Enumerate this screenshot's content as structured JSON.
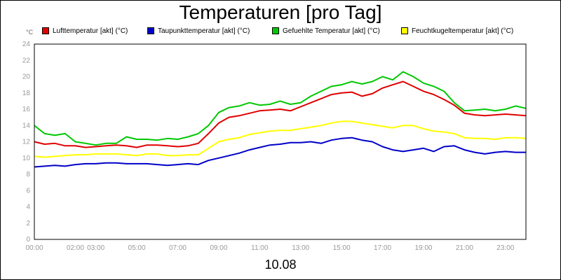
{
  "chart_data": {
    "type": "line",
    "title": "Temperaturen [pro Tag]",
    "xlabel": "10.08",
    "unit_label": "°C",
    "grid": true,
    "legend_position": "top",
    "ylim": [
      0,
      24
    ],
    "y_ticks": [
      0,
      2,
      4,
      6,
      8,
      10,
      12,
      14,
      16,
      18,
      20,
      22,
      24
    ],
    "xlim": [
      0,
      24
    ],
    "x_ticks": [
      {
        "x": 0,
        "label": "00:00"
      },
      {
        "x": 2,
        "label": "02:00"
      },
      {
        "x": 3,
        "label": "03:00"
      },
      {
        "x": 5,
        "label": "05:00"
      },
      {
        "x": 7,
        "label": "07:00"
      },
      {
        "x": 9,
        "label": "09:00"
      },
      {
        "x": 11,
        "label": "11:00"
      },
      {
        "x": 13,
        "label": "13:00"
      },
      {
        "x": 15,
        "label": "15:00"
      },
      {
        "x": 17,
        "label": "17:00"
      },
      {
        "x": 19,
        "label": "19:00"
      },
      {
        "x": 21,
        "label": "21:00"
      },
      {
        "x": 23,
        "label": "23:00"
      }
    ],
    "x": [
      0,
      0.5,
      1,
      1.5,
      2,
      2.5,
      3,
      3.5,
      4,
      4.5,
      5,
      5.5,
      6,
      6.5,
      7,
      7.5,
      8,
      8.5,
      9,
      9.5,
      10,
      10.5,
      11,
      11.5,
      12,
      12.5,
      13,
      13.5,
      14,
      14.5,
      15,
      15.5,
      16,
      16.5,
      17,
      17.5,
      18,
      18.5,
      19,
      19.5,
      20,
      20.5,
      21,
      21.5,
      22,
      22.5,
      23,
      23.5,
      24
    ],
    "series": [
      {
        "name": "Lufttemperatur [akt] (°C)",
        "color": "#e00000",
        "values": [
          12.0,
          11.7,
          11.8,
          11.5,
          11.5,
          11.3,
          11.4,
          11.5,
          11.6,
          11.5,
          11.3,
          11.6,
          11.6,
          11.5,
          11.4,
          11.5,
          11.8,
          13.0,
          14.3,
          15.0,
          15.2,
          15.5,
          15.8,
          15.9,
          16.0,
          15.8,
          16.3,
          16.8,
          17.3,
          17.8,
          18.0,
          18.1,
          17.6,
          17.9,
          18.6,
          19.0,
          19.4,
          18.8,
          18.2,
          17.8,
          17.2,
          16.5,
          15.5,
          15.3,
          15.2,
          15.3,
          15.4,
          15.3,
          15.2
        ]
      },
      {
        "name": "Taupunkttemperatur [akt] (°C)",
        "color": "#0000c8",
        "values": [
          8.9,
          9.0,
          9.1,
          9.0,
          9.2,
          9.3,
          9.3,
          9.4,
          9.4,
          9.3,
          9.3,
          9.3,
          9.2,
          9.1,
          9.2,
          9.3,
          9.2,
          9.7,
          10.0,
          10.3,
          10.6,
          11.0,
          11.3,
          11.6,
          11.7,
          11.9,
          11.9,
          12.0,
          11.8,
          12.2,
          12.4,
          12.5,
          12.2,
          12.0,
          11.4,
          11.0,
          10.8,
          11.0,
          11.2,
          10.8,
          11.4,
          11.5,
          11.0,
          10.7,
          10.5,
          10.7,
          10.8,
          10.7,
          10.7
        ]
      },
      {
        "name": "Gefuehlte Temperatur [akt] (°C)",
        "color": "#00c800",
        "values": [
          14.0,
          13.0,
          12.8,
          13.0,
          12.0,
          11.8,
          11.6,
          11.8,
          11.8,
          12.6,
          12.3,
          12.3,
          12.2,
          12.4,
          12.3,
          12.6,
          13.0,
          14.0,
          15.6,
          16.2,
          16.4,
          16.8,
          16.5,
          16.6,
          17.0,
          16.6,
          16.8,
          17.6,
          18.2,
          18.8,
          19.0,
          19.4,
          19.1,
          19.4,
          20.0,
          19.6,
          20.6,
          20.0,
          19.2,
          18.8,
          18.2,
          16.8,
          15.8,
          15.9,
          16.0,
          15.8,
          16.0,
          16.4,
          16.1
        ]
      },
      {
        "name": "Feuchtkugeltemperatur [akt] (°C)",
        "color": "#ffff00",
        "values": [
          10.2,
          10.1,
          10.2,
          10.3,
          10.4,
          10.4,
          10.5,
          10.5,
          10.5,
          10.4,
          10.3,
          10.5,
          10.5,
          10.3,
          10.3,
          10.4,
          10.4,
          11.2,
          12.0,
          12.3,
          12.5,
          12.9,
          13.1,
          13.3,
          13.4,
          13.4,
          13.6,
          13.8,
          14.0,
          14.3,
          14.5,
          14.5,
          14.3,
          14.1,
          13.9,
          13.7,
          14.0,
          14.0,
          13.6,
          13.3,
          13.2,
          13.0,
          12.5,
          12.4,
          12.4,
          12.3,
          12.5,
          12.5,
          12.4
        ]
      }
    ]
  }
}
